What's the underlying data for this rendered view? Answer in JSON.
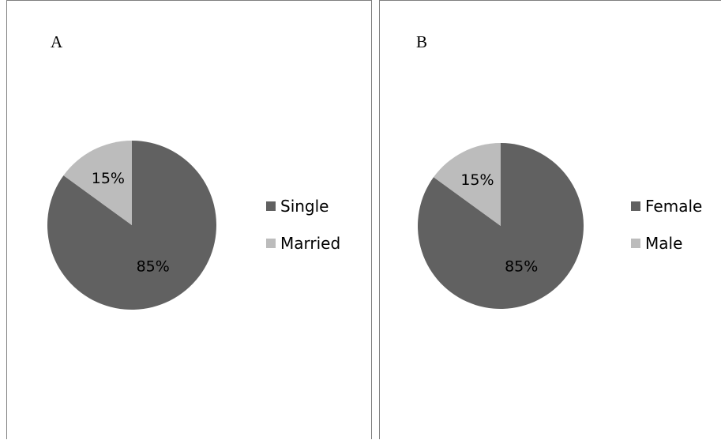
{
  "chart_data": [
    {
      "type": "pie",
      "panel": "A",
      "categories": [
        "Single",
        "Married"
      ],
      "values": [
        85,
        15
      ],
      "data_labels": [
        "85%",
        "15%"
      ],
      "colors": [
        "#616161",
        "#bcbcbc"
      ],
      "legend": "right"
    },
    {
      "type": "pie",
      "panel": "B",
      "categories": [
        "Female",
        "Male"
      ],
      "values": [
        85,
        15
      ],
      "data_labels": [
        "85%",
        "15%"
      ],
      "colors": [
        "#616161",
        "#bcbcbc"
      ],
      "legend": "right"
    }
  ]
}
